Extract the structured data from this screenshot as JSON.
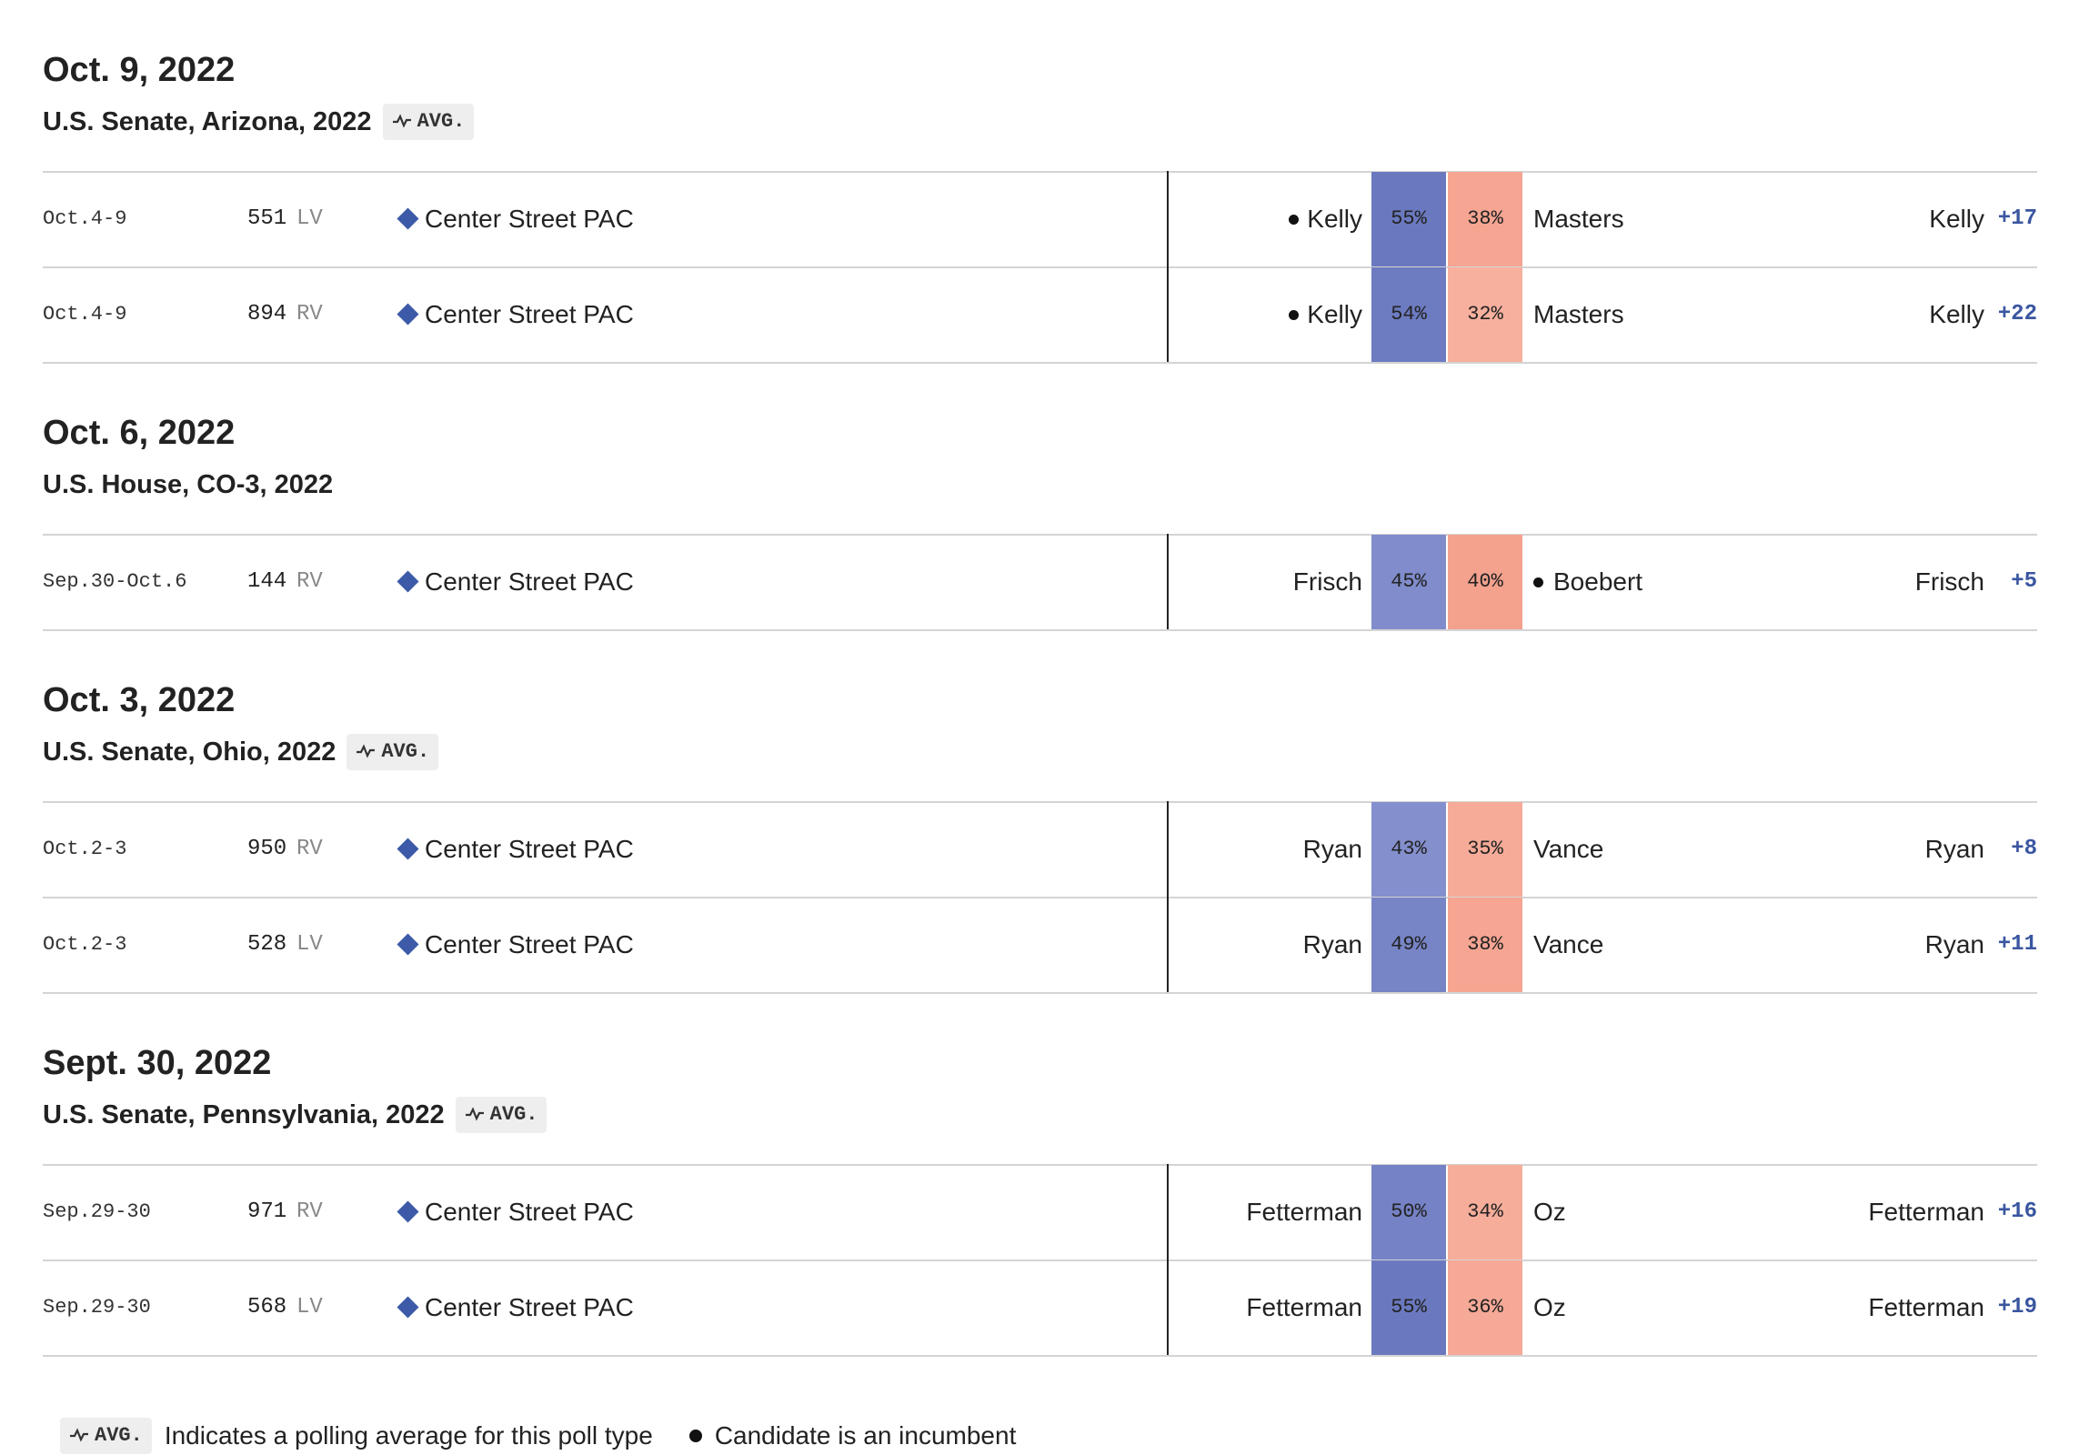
{
  "groups": [
    {
      "date": "Oct. 9, 2022",
      "race": "U.S. Senate, Arizona, 2022",
      "avg_label": "AVG.",
      "polls": [
        {
          "dates": "Oct.4-9",
          "sample": "551",
          "population": "LV",
          "pollster": "Center Street PAC",
          "dem": {
            "name": "Kelly",
            "pct": "55%",
            "incumbent": true
          },
          "rep": {
            "name": "Masters",
            "pct": "38%",
            "incumbent": false
          },
          "leader": "Kelly",
          "margin": "+17"
        },
        {
          "dates": "Oct.4-9",
          "sample": "894",
          "population": "RV",
          "pollster": "Center Street PAC",
          "dem": {
            "name": "Kelly",
            "pct": "54%",
            "incumbent": true
          },
          "rep": {
            "name": "Masters",
            "pct": "32%",
            "incumbent": false
          },
          "leader": "Kelly",
          "margin": "+22"
        }
      ]
    },
    {
      "date": "Oct. 6, 2022",
      "race": "U.S. House, CO-3, 2022",
      "polls": [
        {
          "dates": "Sep.30-Oct.6",
          "sample": "144",
          "population": "RV",
          "pollster": "Center Street PAC",
          "dem": {
            "name": "Frisch",
            "pct": "45%",
            "incumbent": false
          },
          "rep": {
            "name": "Boebert",
            "pct": "40%",
            "incumbent": true
          },
          "leader": "Frisch",
          "margin": "+5"
        }
      ]
    },
    {
      "date": "Oct. 3, 2022",
      "race": "U.S. Senate, Ohio, 2022",
      "avg_label": "AVG.",
      "polls": [
        {
          "dates": "Oct.2-3",
          "sample": "950",
          "population": "RV",
          "pollster": "Center Street PAC",
          "dem": {
            "name": "Ryan",
            "pct": "43%",
            "incumbent": false
          },
          "rep": {
            "name": "Vance",
            "pct": "35%",
            "incumbent": false
          },
          "leader": "Ryan",
          "margin": "+8"
        },
        {
          "dates": "Oct.2-3",
          "sample": "528",
          "population": "LV",
          "pollster": "Center Street PAC",
          "dem": {
            "name": "Ryan",
            "pct": "49%",
            "incumbent": false
          },
          "rep": {
            "name": "Vance",
            "pct": "38%",
            "incumbent": false
          },
          "leader": "Ryan",
          "margin": "+11"
        }
      ]
    },
    {
      "date": "Sept. 30, 2022",
      "race": "U.S. Senate, Pennsylvania, 2022",
      "avg_label": "AVG.",
      "polls": [
        {
          "dates": "Sep.29-30",
          "sample": "971",
          "population": "RV",
          "pollster": "Center Street PAC",
          "dem": {
            "name": "Fetterman",
            "pct": "50%",
            "incumbent": false
          },
          "rep": {
            "name": "Oz",
            "pct": "34%",
            "incumbent": false
          },
          "leader": "Fetterman",
          "margin": "+16"
        },
        {
          "dates": "Sep.29-30",
          "sample": "568",
          "population": "LV",
          "pollster": "Center Street PAC",
          "dem": {
            "name": "Fetterman",
            "pct": "55%",
            "incumbent": false
          },
          "rep": {
            "name": "Oz",
            "pct": "36%",
            "incumbent": false
          },
          "leader": "Fetterman",
          "margin": "+19"
        }
      ]
    }
  ],
  "legend": {
    "avg_label": "AVG.",
    "avg_text": "Indicates a polling average for this poll type",
    "incumbent_text": "Candidate is an incumbent"
  }
}
